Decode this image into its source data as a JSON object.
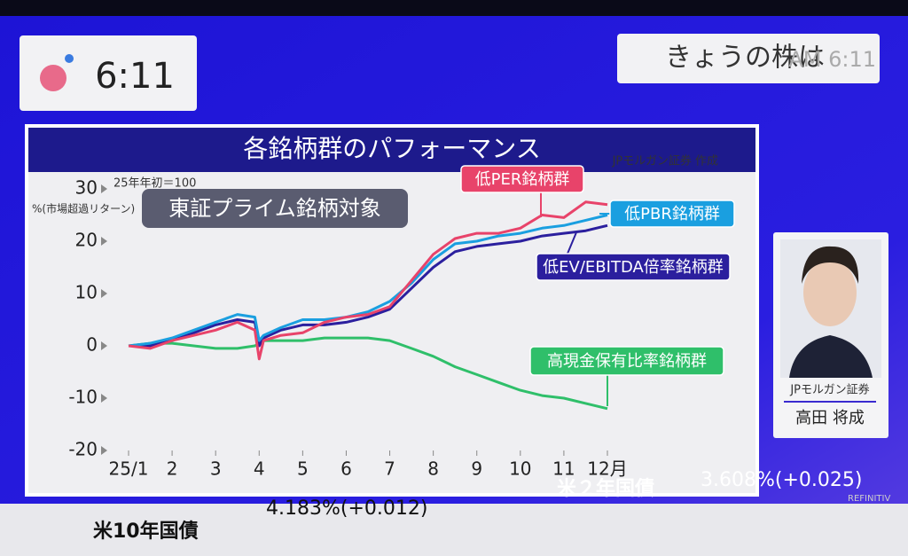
{
  "header": {
    "clock": "6:11",
    "program": "きょうの株は",
    "program_time": "AM 6:11"
  },
  "chart_data": {
    "type": "line",
    "title": "各銘柄群のパフォーマンス",
    "source": "JPモルガン証券 作成",
    "base_note": "25年年初＝100",
    "ylabel": "%(市場超過リターン)",
    "annotation": "東証プライム銘柄対象",
    "x": [
      1,
      1.5,
      2,
      2.5,
      3,
      3.5,
      3.9,
      4,
      4.1,
      4.5,
      5,
      5.5,
      6,
      6.5,
      7,
      7.5,
      8,
      8.5,
      9,
      9.5,
      10,
      10.5,
      11,
      11.5,
      12
    ],
    "xlim": [
      1,
      12
    ],
    "xticks": [
      {
        "value": 1,
        "label": "25/1"
      },
      2,
      3,
      4,
      5,
      6,
      7,
      8,
      9,
      10,
      11,
      {
        "value": 12,
        "label": "12月"
      }
    ],
    "ylim": [
      -20,
      30
    ],
    "yticks": [
      -20,
      -10,
      0,
      10,
      20,
      30
    ],
    "series": [
      {
        "name": "低PER銘柄群",
        "color": "#e8436a",
        "values": [
          0,
          -0.5,
          1,
          2,
          3,
          4.5,
          3,
          -2.5,
          1,
          2,
          2.5,
          4.5,
          5.5,
          6,
          7.5,
          12.5,
          17.5,
          20.5,
          21.5,
          21.5,
          22.5,
          25,
          24.5,
          27.5,
          27
        ]
      },
      {
        "name": "低PBR銘柄群",
        "color": "#1a9fe0",
        "values": [
          0,
          0.5,
          1.5,
          3,
          4.5,
          6,
          5.5,
          1,
          2,
          3.5,
          5,
          5,
          5.5,
          6.5,
          8.5,
          12,
          16.5,
          19.5,
          20,
          21,
          21.5,
          22.5,
          23,
          24,
          25
        ]
      },
      {
        "name": "低EV/EBITDA倍率銘柄群",
        "color": "#2b1f9e",
        "values": [
          0,
          0,
          1,
          2.5,
          4,
          5,
          4.5,
          0,
          1.5,
          3,
          4,
          4,
          4.5,
          5.5,
          7,
          11,
          15,
          18,
          19,
          19.5,
          20,
          21,
          21.5,
          22,
          23
        ]
      },
      {
        "name": "高現金保有比率銘柄群",
        "color": "#2fbf6a",
        "values": [
          0,
          0.5,
          0.5,
          0,
          -0.5,
          -0.5,
          0,
          0.5,
          1,
          1,
          1,
          1.5,
          1.5,
          1.5,
          1,
          -0.5,
          -2,
          -4,
          -5.5,
          -7,
          -8.5,
          -9.5,
          -10,
          -11,
          -12
        ]
      }
    ]
  },
  "guest": {
    "company": "JPモルガン証券",
    "name": "高田 将成"
  },
  "ticker": [
    {
      "name": "米10年国債",
      "value": "4.183%(+0.012)"
    },
    {
      "name": "米２年国債",
      "value": "3.608%(+0.025)"
    }
  ],
  "watermark": "REFINITIV"
}
